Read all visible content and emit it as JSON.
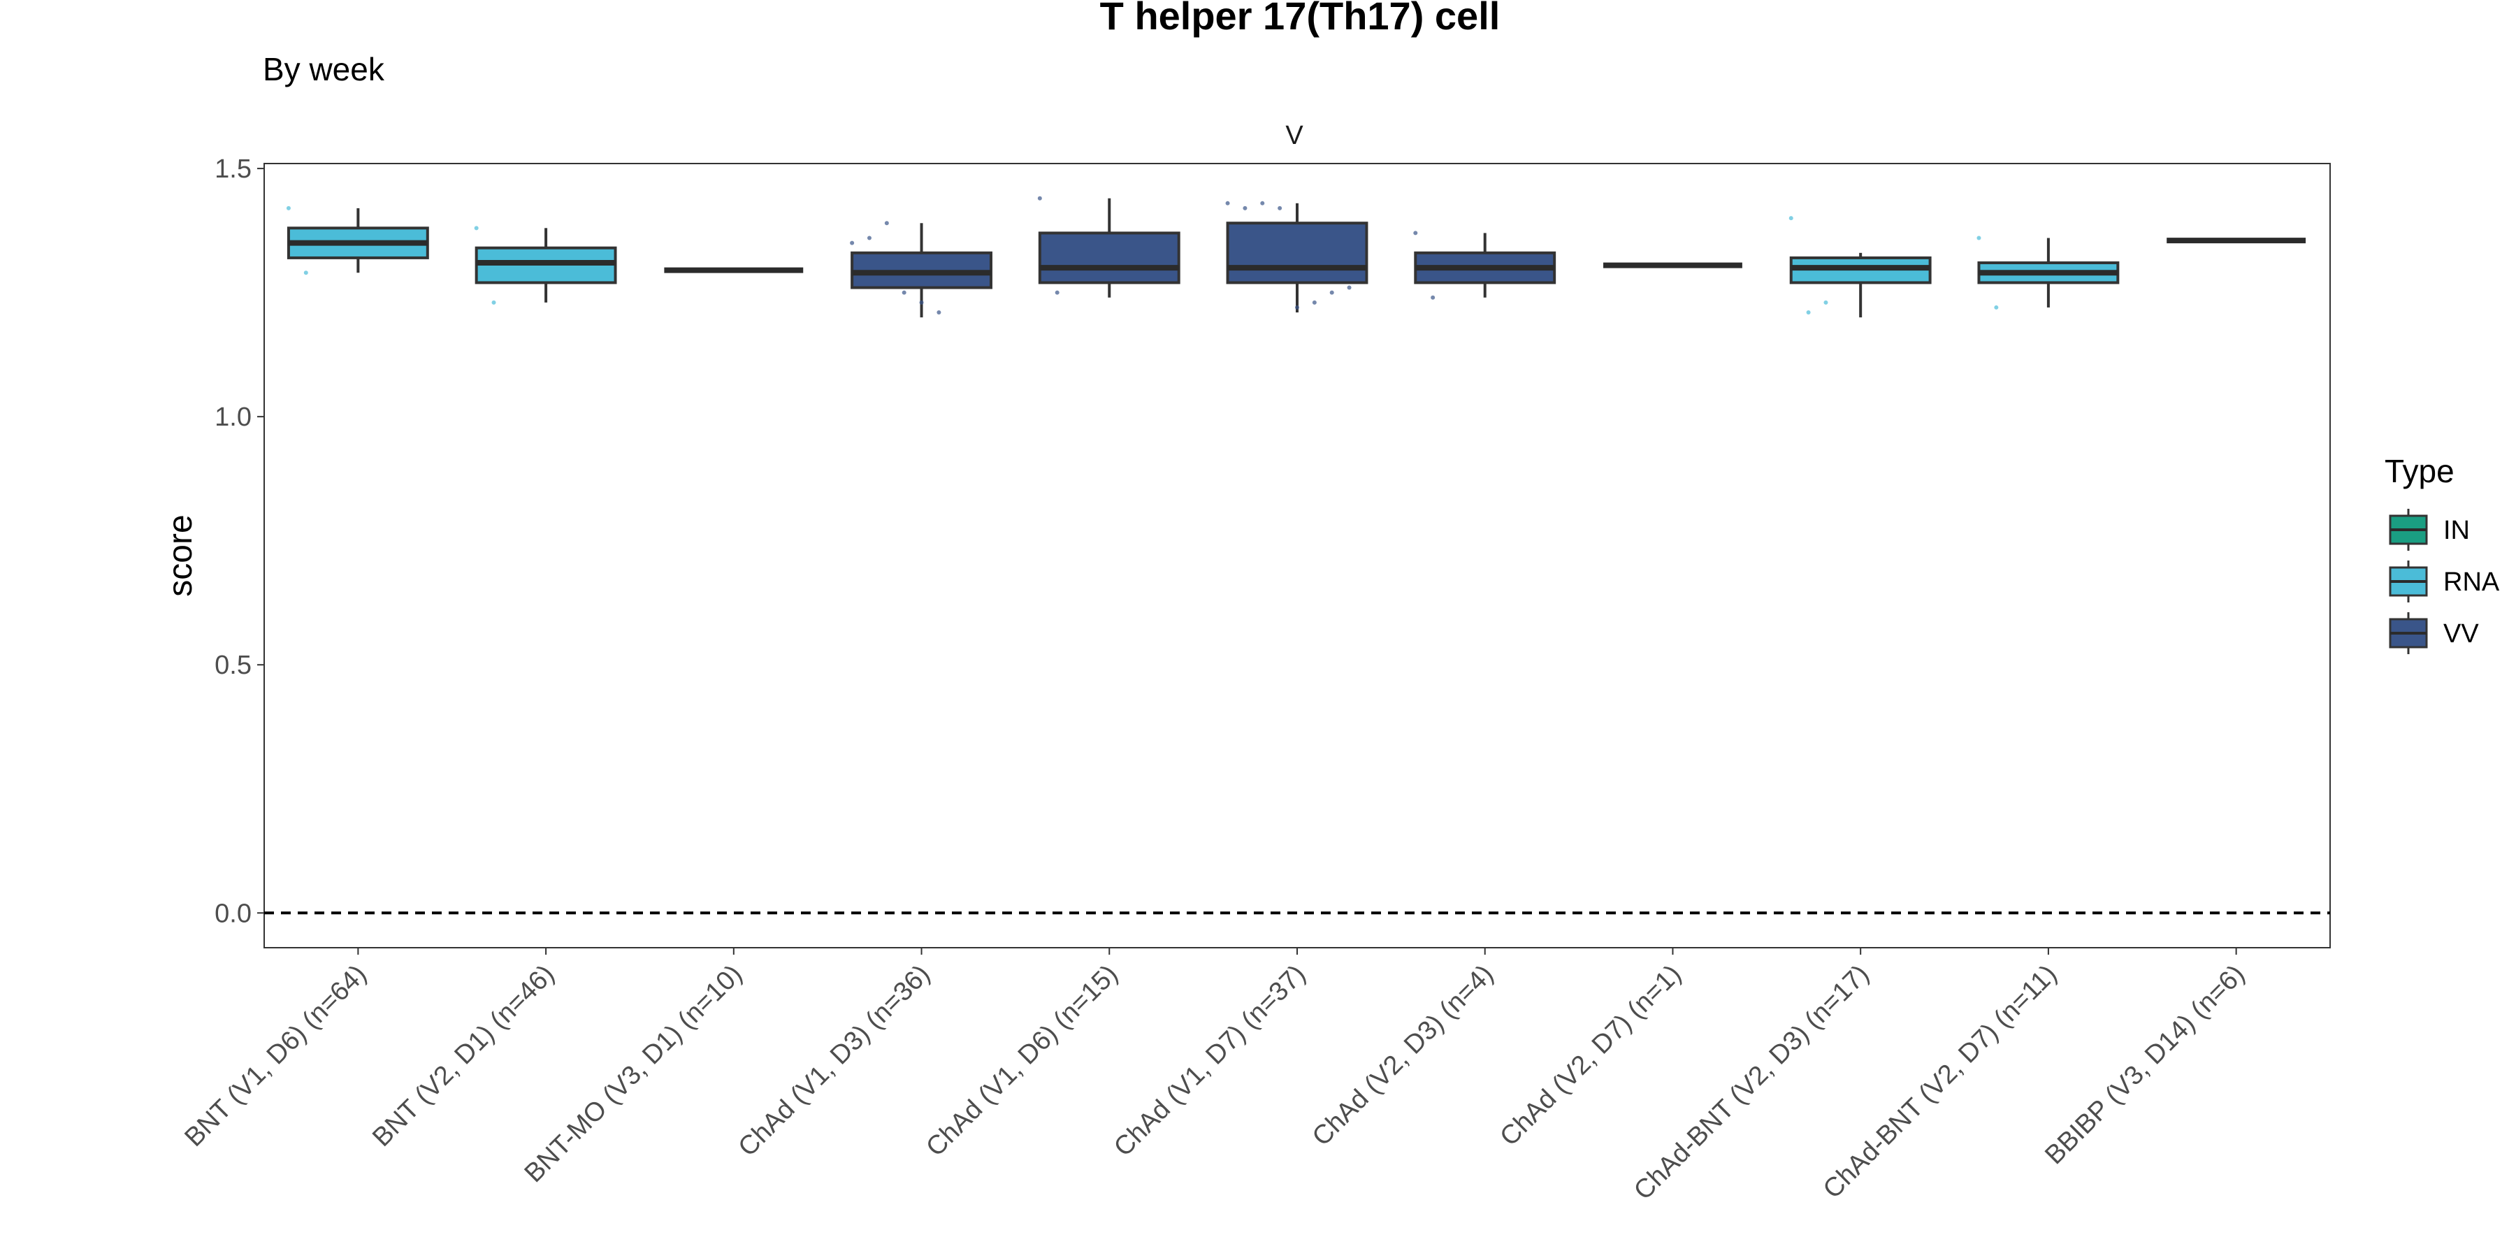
{
  "chart_data": {
    "type": "box",
    "title": "T helper 17(Th17) cell",
    "subtitle": "By week",
    "facet_label": "V",
    "ylabel": "score",
    "xlabel": "",
    "ylim": [
      -0.07,
      1.51
    ],
    "yticks": [
      0.0,
      0.5,
      1.0,
      1.5
    ],
    "ytick_labels": [
      "0.0",
      "0.5",
      "1.0",
      "1.5"
    ],
    "reference_line": {
      "y": 0.0,
      "style": "dashed"
    },
    "legend": {
      "title": "Type",
      "position": "right",
      "items": [
        {
          "label": "IN",
          "color": "#1a9e82"
        },
        {
          "label": "RNA",
          "color": "#4bbcd8"
        },
        {
          "label": "VV",
          "color": "#3a5589"
        }
      ]
    },
    "categories": [
      "BNT (V1, D6) (n=64)",
      "BNT (V2, D1) (n=46)",
      "BNT-MO (V3, D1) (n=10)",
      "ChAd (V1, D3) (n=36)",
      "ChAd (V1, D6) (n=15)",
      "ChAd (V1, D7) (n=37)",
      "ChAd (V2, D3) (n=4)",
      "ChAd (V2, D7) (n=1)",
      "ChAd-BNT (V2, D3) (n=17)",
      "ChAd-BNT (V2, D7) (n=11)",
      "BBIBP (V3, D14) (n=6)"
    ],
    "boxes": [
      {
        "type": "RNA",
        "whisker_low": 1.29,
        "q1": 1.32,
        "median": 1.35,
        "q3": 1.38,
        "whisker_high": 1.42,
        "points": [
          1.42,
          1.29
        ]
      },
      {
        "type": "RNA",
        "whisker_low": 1.23,
        "q1": 1.27,
        "median": 1.31,
        "q3": 1.34,
        "whisker_high": 1.38,
        "points": [
          1.38,
          1.23
        ]
      },
      {
        "type": "RNA",
        "whisker_low": 1.295,
        "q1": 1.295,
        "median": 1.295,
        "q3": 1.295,
        "whisker_high": 1.295,
        "points": []
      },
      {
        "type": "VV",
        "whisker_low": 1.2,
        "q1": 1.26,
        "median": 1.29,
        "q3": 1.33,
        "whisker_high": 1.39,
        "points": [
          1.35,
          1.36,
          1.39,
          1.25,
          1.23,
          1.21
        ]
      },
      {
        "type": "VV",
        "whisker_low": 1.24,
        "q1": 1.27,
        "median": 1.3,
        "q3": 1.37,
        "whisker_high": 1.44,
        "points": [
          1.44,
          1.25
        ]
      },
      {
        "type": "VV",
        "whisker_low": 1.21,
        "q1": 1.27,
        "median": 1.3,
        "q3": 1.39,
        "whisker_high": 1.43,
        "points": [
          1.43,
          1.42,
          1.43,
          1.42,
          1.22,
          1.23,
          1.25,
          1.26
        ]
      },
      {
        "type": "VV",
        "whisker_low": 1.24,
        "q1": 1.27,
        "median": 1.3,
        "q3": 1.33,
        "whisker_high": 1.37,
        "points": [
          1.37,
          1.24
        ]
      },
      {
        "type": "VV",
        "whisker_low": 1.305,
        "q1": 1.305,
        "median": 1.305,
        "q3": 1.305,
        "whisker_high": 1.305,
        "points": []
      },
      {
        "type": "RNA",
        "whisker_low": 1.2,
        "q1": 1.27,
        "median": 1.3,
        "q3": 1.32,
        "whisker_high": 1.33,
        "points": [
          1.4,
          1.21,
          1.23
        ]
      },
      {
        "type": "RNA",
        "whisker_low": 1.22,
        "q1": 1.27,
        "median": 1.29,
        "q3": 1.31,
        "whisker_high": 1.36,
        "points": [
          1.36,
          1.22
        ]
      },
      {
        "type": "RNA",
        "whisker_low": 1.355,
        "q1": 1.355,
        "median": 1.355,
        "q3": 1.355,
        "whisker_high": 1.355,
        "points": []
      }
    ]
  }
}
